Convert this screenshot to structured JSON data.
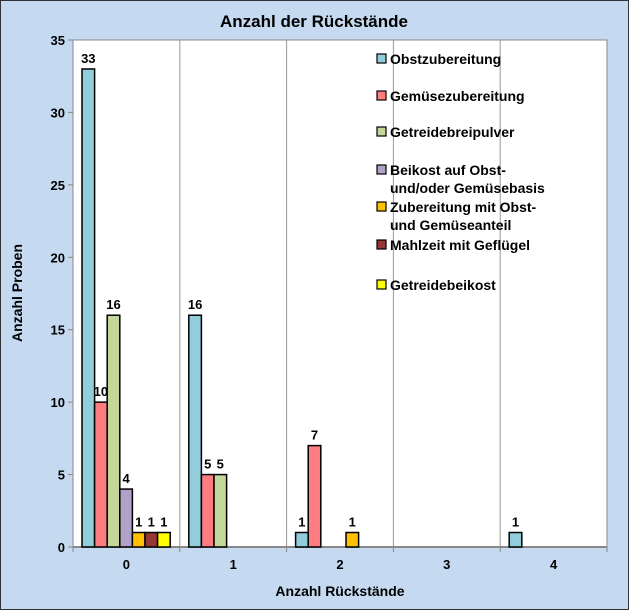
{
  "chart_data": {
    "type": "bar",
    "title": "Anzahl der Rückstände",
    "xlabel": "Anzahl Rückstände",
    "ylabel": "Anzahl Proben",
    "categories": [
      "0",
      "1",
      "2",
      "3",
      "4"
    ],
    "ylim": [
      0,
      35
    ],
    "yticks": [
      "0",
      "5",
      "10",
      "15",
      "20",
      "25",
      "30",
      "35"
    ],
    "grid": "vertical",
    "legend_position": "top-right",
    "series": [
      {
        "name": "Obstzubereitung",
        "color": "#92CDDC",
        "values": [
          33,
          16,
          1,
          0,
          1
        ]
      },
      {
        "name": "Gemüsezubereitung",
        "color": "#FF7C80",
        "values": [
          10,
          5,
          7,
          0,
          0
        ]
      },
      {
        "name": "Getreidebreipulver",
        "color": "#C4D79B",
        "values": [
          16,
          5,
          0,
          0,
          0
        ]
      },
      {
        "name": "Beikost auf Obst- und/oder Gemüsebasis",
        "lines": [
          "Beikost auf Obst-",
          "und/oder Gemüsebasis"
        ],
        "color": "#B1A0C7",
        "values": [
          4,
          0,
          0,
          0,
          0
        ]
      },
      {
        "name": "Zubereitung mit Obst- und Gemüseanteil",
        "lines": [
          "Zubereitung mit Obst-",
          "und Gemüseanteil"
        ],
        "color": "#FFC000",
        "values": [
          1,
          0,
          1,
          0,
          0
        ]
      },
      {
        "name": "Mahlzeit mit Geflügel",
        "color": "#953735",
        "values": [
          1,
          0,
          0,
          0,
          0
        ]
      },
      {
        "name": "Getreidebeikost",
        "color": "#FFFF00",
        "values": [
          1,
          0,
          0,
          0,
          0
        ]
      }
    ]
  }
}
